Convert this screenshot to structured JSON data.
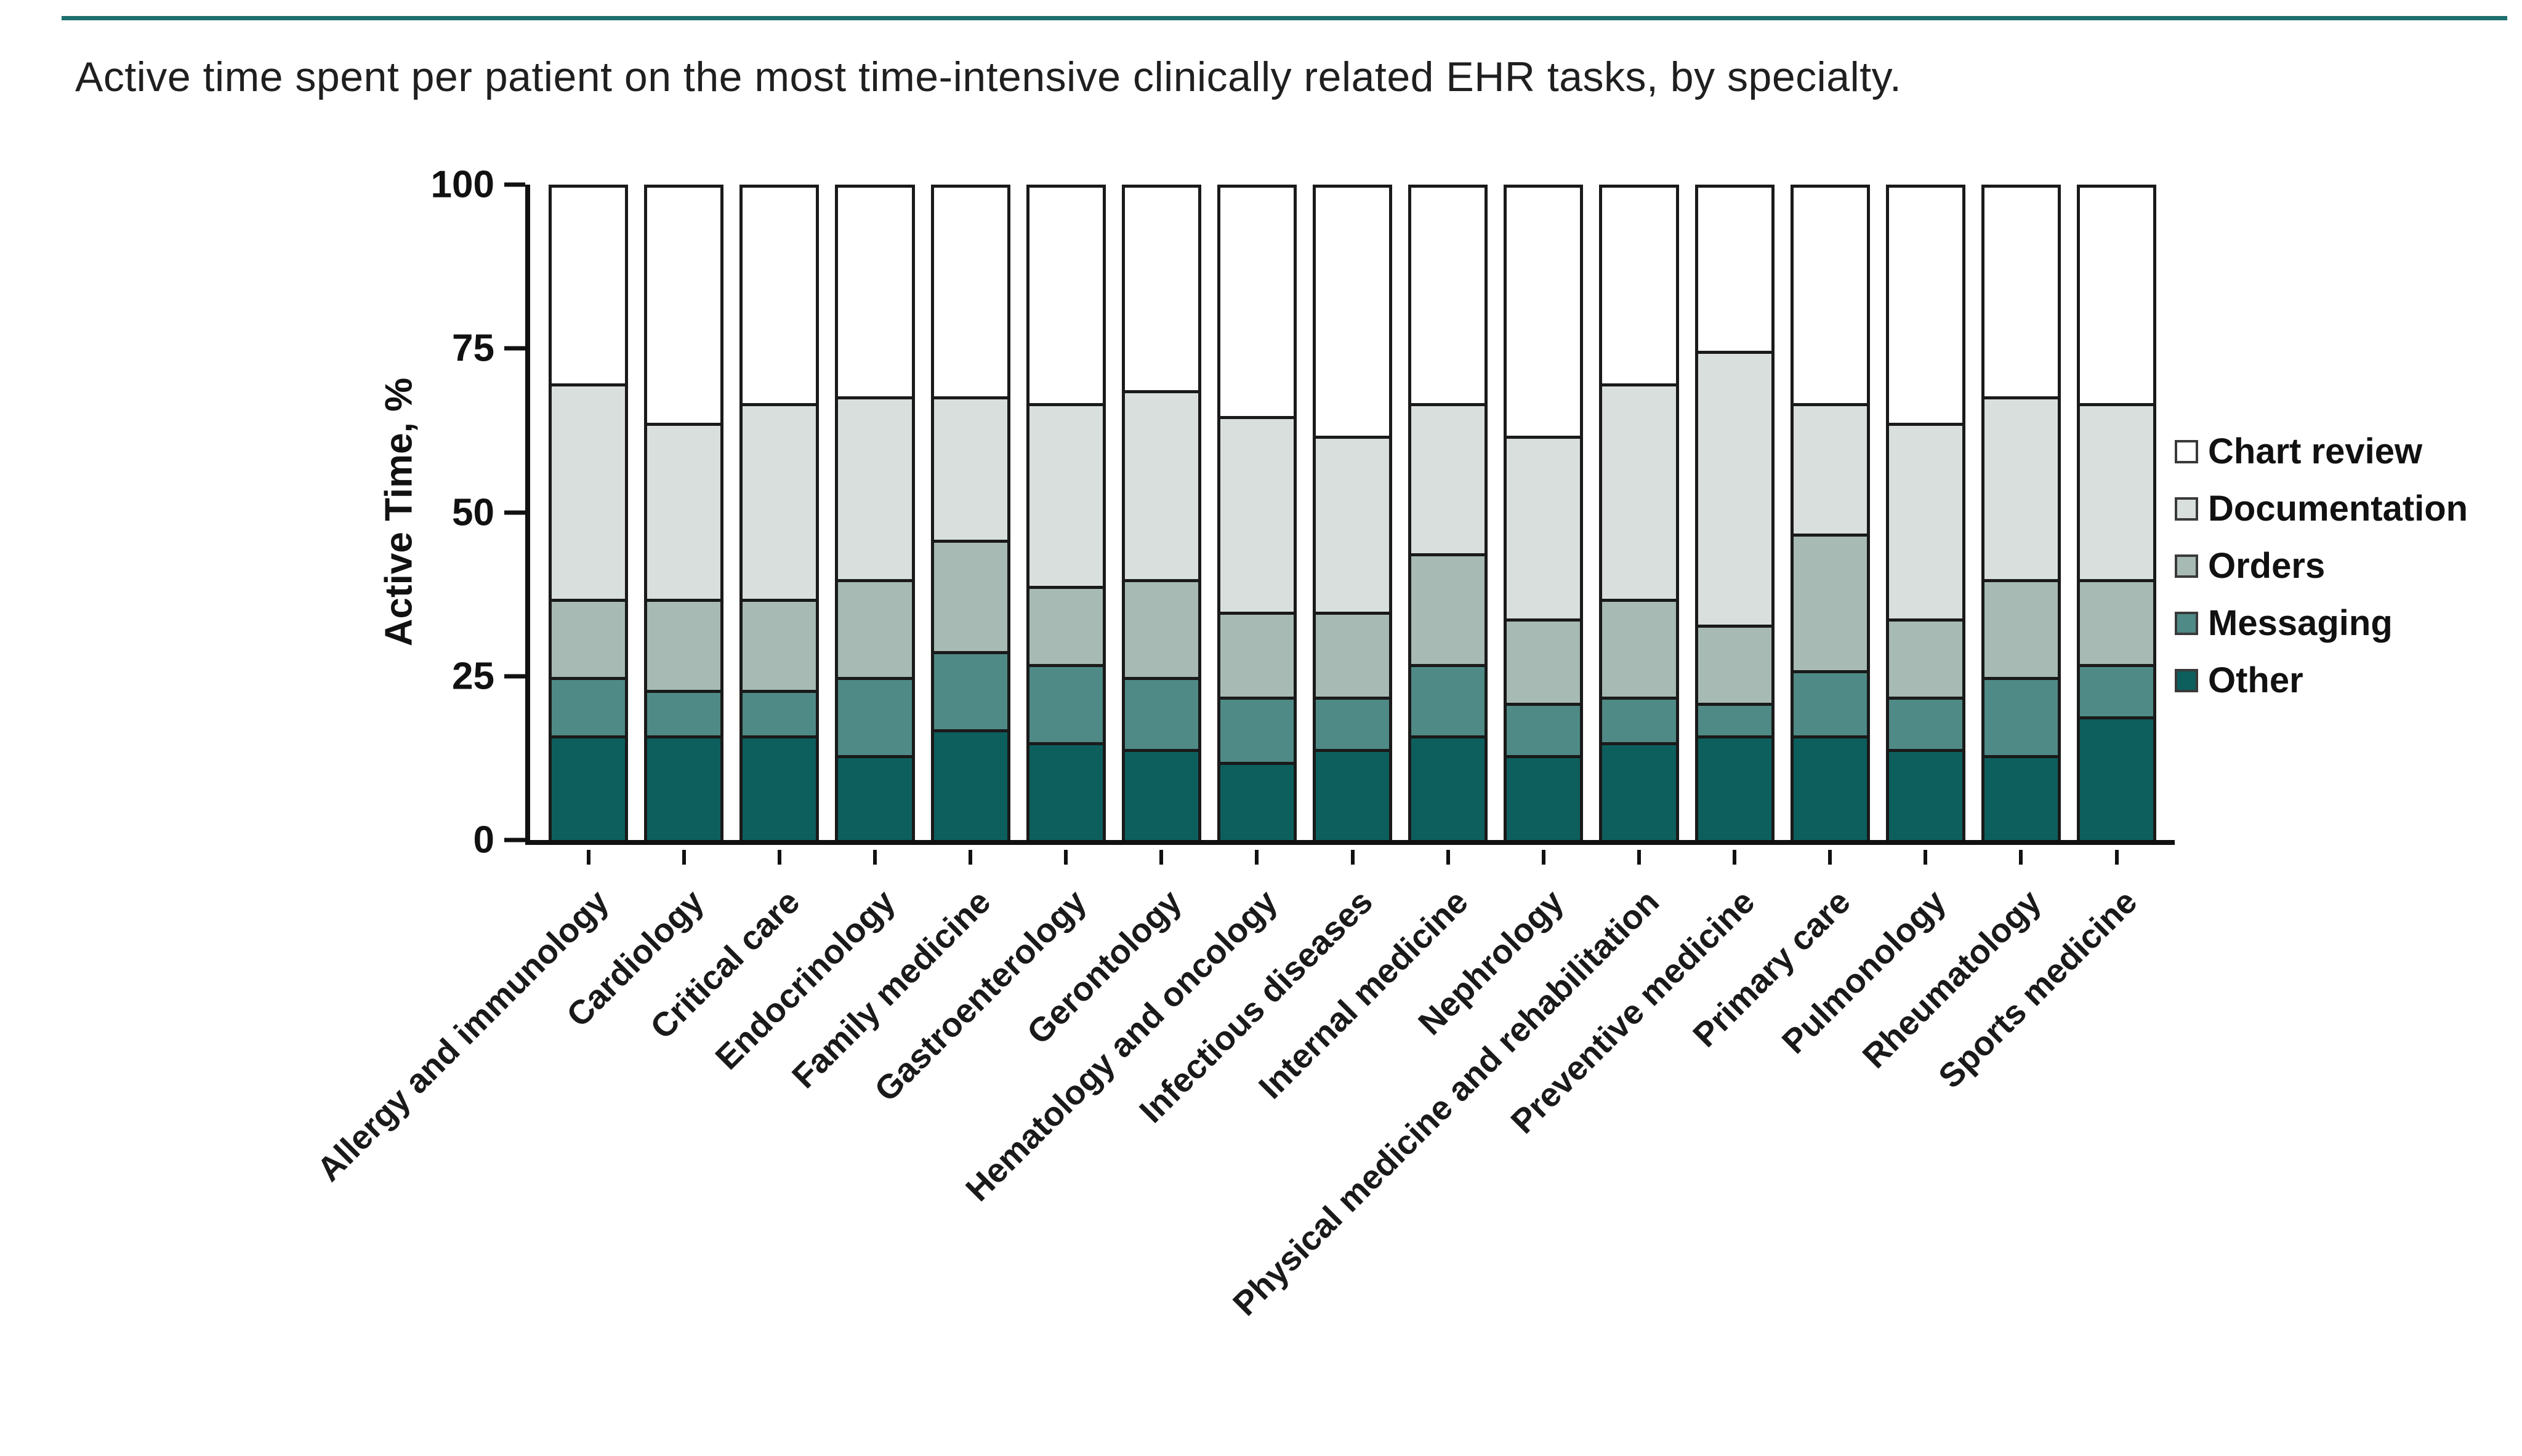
{
  "accent_rule_color": "#1e6f6f",
  "chart_data": {
    "type": "bar",
    "stacked": true,
    "title": "Active time spent per patient on the most time-intensive clinically related EHR tasks, by specialty.",
    "ylabel": "Active Time, %",
    "ylim": [
      0,
      100
    ],
    "yticks": [
      0,
      25,
      50,
      75,
      100
    ],
    "grid": false,
    "legend_position": "right",
    "legend_order": [
      "Chart review",
      "Documentation",
      "Orders",
      "Messaging",
      "Other"
    ],
    "categories": [
      "Allergy and immunology",
      "Cardiology",
      "Critical care",
      "Endocrinology",
      "Family medicine",
      "Gastroenterology",
      "Gerontology",
      "Hematology and oncology",
      "Infectious diseases",
      "Internal medicine",
      "Nephrology",
      "Physical medicine and rehabilitation",
      "Preventive medicine",
      "Primary care",
      "Pulmonology",
      "Rheumatology",
      "Sports medicine"
    ],
    "series": [
      {
        "name": "Other",
        "color": "#0d5f5d",
        "values": [
          16,
          16,
          16,
          13,
          17,
          15,
          14,
          12,
          14,
          16,
          13,
          15,
          16,
          16,
          14,
          13,
          19
        ]
      },
      {
        "name": "Messaging",
        "color": "#4f8a86",
        "values": [
          9,
          7,
          7,
          12,
          12,
          12,
          11,
          10,
          8,
          11,
          8,
          7,
          5,
          10,
          8,
          12,
          8
        ]
      },
      {
        "name": "Orders",
        "color": "#a7bab4",
        "values": [
          12,
          14,
          14,
          15,
          17,
          12,
          15,
          13,
          13,
          17,
          13,
          15,
          12,
          21,
          12,
          15,
          13
        ]
      },
      {
        "name": "Documentation",
        "color": "#d8dfdc",
        "values": [
          33,
          27,
          30,
          28,
          22,
          28,
          29,
          30,
          27,
          23,
          28,
          33,
          42,
          20,
          30,
          28,
          27
        ]
      },
      {
        "name": "Chart review",
        "color": "#ffffff",
        "values": [
          30,
          36,
          33,
          32,
          32,
          33,
          31,
          35,
          38,
          33,
          38,
          30,
          25,
          33,
          36,
          32,
          33
        ]
      }
    ]
  }
}
